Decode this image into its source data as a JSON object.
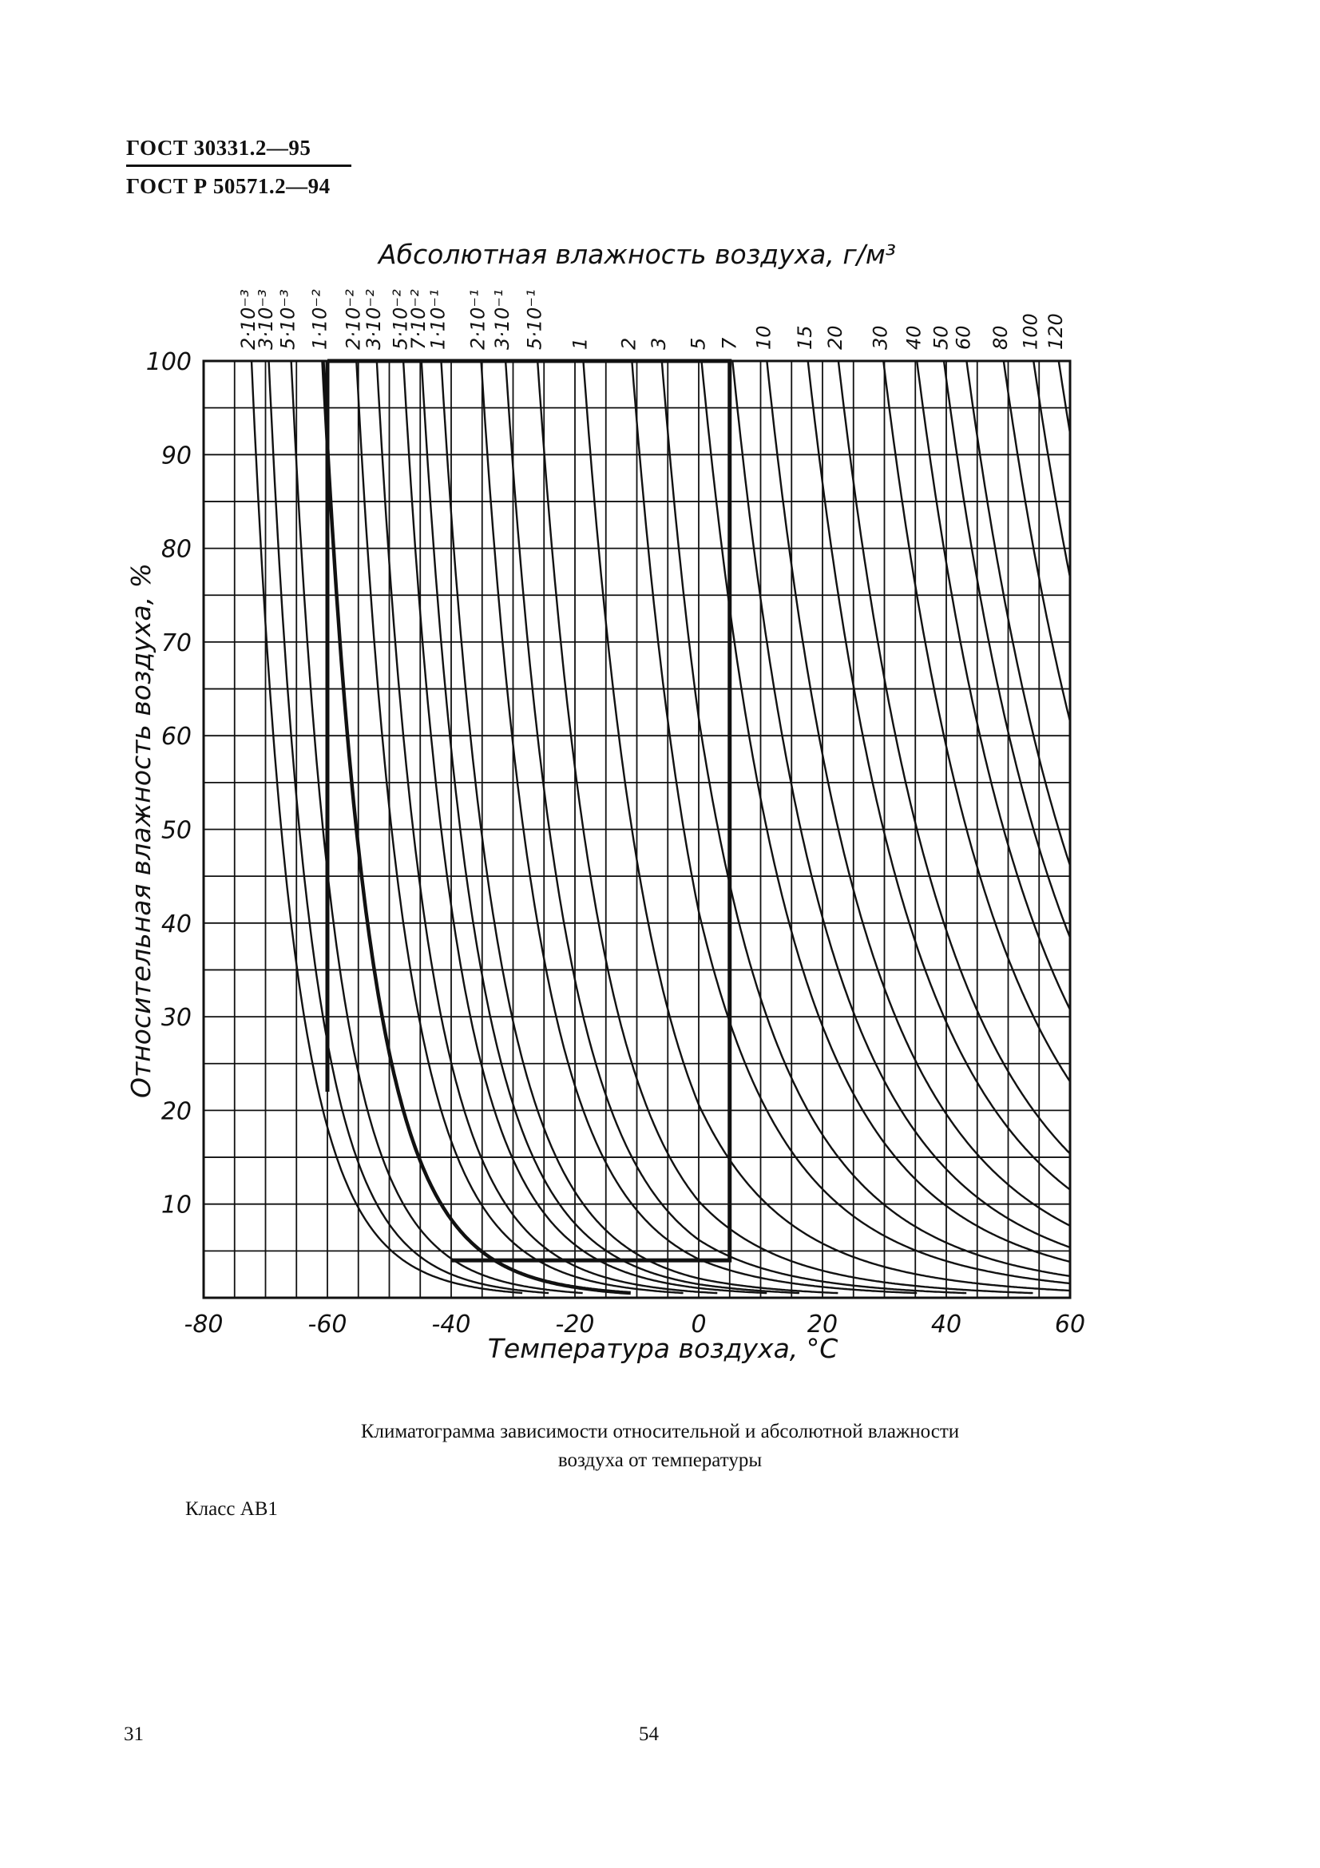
{
  "header": {
    "standard_1": "ГОСТ 30331.2—95",
    "standard_2": "ГОСТ Р 50571.2—94"
  },
  "chart_data": {
    "type": "line",
    "title": "Абсолютная влажность воздуха, г/м³",
    "xlabel": "Температура воздуха, °C",
    "ylabel": "Относительная влажность воздуха, %",
    "xlim": [
      -80,
      60
    ],
    "ylim": [
      0,
      100
    ],
    "x_ticks": [
      "-80",
      "-60",
      "-40",
      "-20",
      "0",
      "20",
      "40",
      "60"
    ],
    "y_ticks": [
      "10",
      "20",
      "30",
      "40",
      "50",
      "60",
      "70",
      "80",
      "90",
      "100"
    ],
    "series": [
      {
        "name": "2·10⁻³"
      },
      {
        "name": "3·10⁻³"
      },
      {
        "name": "5·10⁻³"
      },
      {
        "name": "1·10⁻²"
      },
      {
        "name": "2·10⁻²"
      },
      {
        "name": "3·10⁻²"
      },
      {
        "name": "5·10⁻²"
      },
      {
        "name": "7·10⁻²"
      },
      {
        "name": "1·10⁻¹"
      },
      {
        "name": "2·10⁻¹"
      },
      {
        "name": "3·10⁻¹"
      },
      {
        "name": "5·10⁻¹"
      },
      {
        "name": "1"
      },
      {
        "name": "2"
      },
      {
        "name": "3"
      },
      {
        "name": "5"
      },
      {
        "name": "7"
      },
      {
        "name": "10"
      },
      {
        "name": "15"
      },
      {
        "name": "20"
      },
      {
        "name": "30"
      },
      {
        "name": "40"
      },
      {
        "name": "50"
      },
      {
        "name": "60"
      },
      {
        "name": "80"
      },
      {
        "name": "100"
      },
      {
        "name": "120"
      }
    ],
    "class_region": {
      "t_min": -40,
      "t_max": 5,
      "rh_min": 4,
      "rh_max": 100,
      "upper_boundary": "1·10⁻²",
      "vertical_line_t": -60
    },
    "grid": true
  },
  "caption": {
    "line1": "Климатограмма зависимости относительной и абсолютной влажности",
    "line2": "воздуха от температуры"
  },
  "class_label": "Класс АВ1",
  "footer": {
    "left_number": "31",
    "center_number": "54"
  }
}
